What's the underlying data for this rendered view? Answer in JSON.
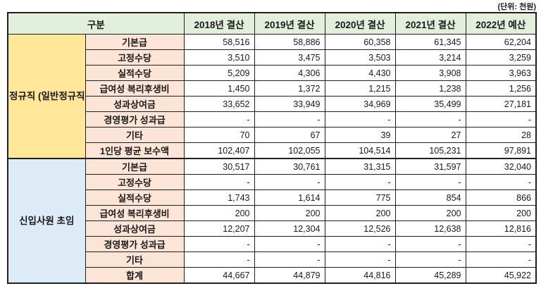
{
  "unit_label": "(단위: 천원)",
  "colors": {
    "header_bg": "#E2EFDA",
    "section_regular_bg": "#FFE699",
    "section_newhire_bg": "#DDEBF7",
    "row_label_bg": "#FCE4D6",
    "border": "#1f1f1f"
  },
  "table": {
    "columns": [
      "구분",
      "2018년 결산",
      "2019년 결산",
      "2020년 결산",
      "2021년 결산",
      "2022년 예산"
    ],
    "sections": [
      {
        "id": "regular",
        "label": "정규직\n(일반정규직)",
        "rows": [
          {
            "label": "기본급",
            "values": [
              "58,516",
              "58,886",
              "60,358",
              "61,345",
              "62,204"
            ]
          },
          {
            "label": "고정수당",
            "values": [
              "3,510",
              "3,475",
              "3,503",
              "3,214",
              "3,259"
            ]
          },
          {
            "label": "실적수당",
            "values": [
              "5,209",
              "4,306",
              "4,430",
              "3,908",
              "3,963"
            ]
          },
          {
            "label": "급여성 복리후생비",
            "values": [
              "1,450",
              "1,372",
              "1,215",
              "1,238",
              "1,256"
            ]
          },
          {
            "label": "성과상여금",
            "values": [
              "33,652",
              "33,949",
              "34,969",
              "35,499",
              "27,181"
            ]
          },
          {
            "label": "경영평가 성과급",
            "values": [
              "-",
              "-",
              "-",
              "-",
              "-"
            ]
          },
          {
            "label": "기타",
            "values": [
              "70",
              "67",
              "39",
              "27",
              "28"
            ]
          },
          {
            "label": "1인당 평균 보수액",
            "values": [
              "102,407",
              "102,055",
              "104,514",
              "105,231",
              "97,891"
            ]
          }
        ]
      },
      {
        "id": "newhire",
        "label": "신입사원 초임",
        "rows": [
          {
            "label": "기본급",
            "values": [
              "30,517",
              "30,761",
              "31,315",
              "31,597",
              "32,040"
            ]
          },
          {
            "label": "고정수당",
            "values": [
              "-",
              "-",
              "-",
              "-",
              "-"
            ]
          },
          {
            "label": "실적수당",
            "values": [
              "1,743",
              "1,614",
              "775",
              "854",
              "866"
            ]
          },
          {
            "label": "급여성 복리후생비",
            "values": [
              "200",
              "200",
              "200",
              "200",
              "200"
            ]
          },
          {
            "label": "성과상여금",
            "values": [
              "12,207",
              "12,304",
              "12,526",
              "12,638",
              "12,816"
            ]
          },
          {
            "label": "경영평가 성과급",
            "values": [
              "-",
              "-",
              "-",
              "-",
              "-"
            ]
          },
          {
            "label": "기타",
            "values": [
              "-",
              "-",
              "-",
              "-",
              "-"
            ]
          },
          {
            "label": "합계",
            "values": [
              "44,667",
              "44,879",
              "44,816",
              "45,289",
              "45,922"
            ]
          }
        ]
      }
    ]
  }
}
